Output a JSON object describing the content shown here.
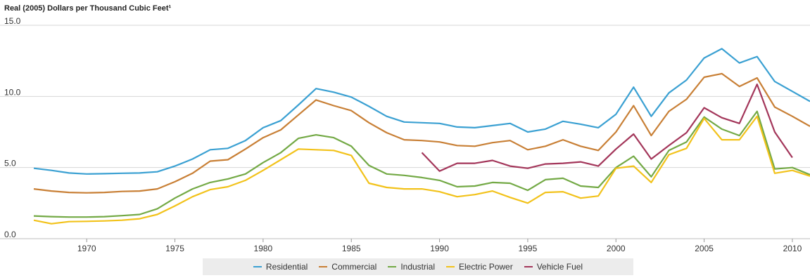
{
  "chart_data": {
    "type": "line",
    "title": "Real (2005) Dollars per Thousand Cubic Feet¹",
    "xlabel": "",
    "ylabel": "",
    "xlim": [
      1967,
      2011
    ],
    "ylim": [
      0,
      15
    ],
    "x_ticks": [
      1970,
      1975,
      1980,
      1985,
      1990,
      1995,
      2000,
      2005,
      2010
    ],
    "y_ticks": [
      "0.0",
      "5.0",
      "10.0",
      "15.0"
    ],
    "y_tick_values": [
      0,
      5,
      10,
      15
    ],
    "grid": "horizontal",
    "legend_position": "bottom",
    "series": [
      {
        "name": "Residential",
        "color": "#3aa0d2",
        "x": [
          1967,
          1968,
          1969,
          1970,
          1971,
          1972,
          1973,
          1974,
          1975,
          1976,
          1977,
          1978,
          1979,
          1980,
          1981,
          1982,
          1983,
          1984,
          1985,
          1986,
          1987,
          1988,
          1989,
          1990,
          1991,
          1992,
          1993,
          1994,
          1995,
          1996,
          1997,
          1998,
          1999,
          2000,
          2001,
          2002,
          2003,
          2004,
          2005,
          2006,
          2007,
          2008,
          2009,
          2010,
          2011
        ],
        "values": [
          4.95,
          4.8,
          4.62,
          4.55,
          4.57,
          4.6,
          4.62,
          4.7,
          5.1,
          5.6,
          6.25,
          6.35,
          6.9,
          7.8,
          8.3,
          9.4,
          10.55,
          10.3,
          9.95,
          9.3,
          8.6,
          8.2,
          8.15,
          8.1,
          7.85,
          7.8,
          7.95,
          8.1,
          7.5,
          7.7,
          8.25,
          8.05,
          7.8,
          8.75,
          10.65,
          8.6,
          10.25,
          11.15,
          12.7,
          13.35,
          12.35,
          12.8,
          11.05,
          10.35,
          9.65
        ]
      },
      {
        "name": "Commercial",
        "color": "#c87f35",
        "x": [
          1967,
          1968,
          1969,
          1970,
          1971,
          1972,
          1973,
          1974,
          1975,
          1976,
          1977,
          1978,
          1979,
          1980,
          1981,
          1982,
          1983,
          1984,
          1985,
          1986,
          1987,
          1988,
          1989,
          1990,
          1991,
          1992,
          1993,
          1994,
          1995,
          1996,
          1997,
          1998,
          1999,
          2000,
          2001,
          2002,
          2003,
          2004,
          2005,
          2006,
          2007,
          2008,
          2009,
          2010,
          2011
        ],
        "values": [
          3.5,
          3.35,
          3.25,
          3.22,
          3.25,
          3.32,
          3.35,
          3.5,
          4.0,
          4.6,
          5.45,
          5.55,
          6.3,
          7.1,
          7.65,
          8.7,
          9.75,
          9.35,
          9.0,
          8.15,
          7.45,
          6.95,
          6.9,
          6.8,
          6.55,
          6.5,
          6.75,
          6.9,
          6.25,
          6.5,
          6.95,
          6.5,
          6.2,
          7.5,
          9.35,
          7.25,
          8.95,
          9.8,
          11.35,
          11.6,
          10.7,
          11.3,
          9.25,
          8.6,
          7.9
        ]
      },
      {
        "name": "Industrial",
        "color": "#73a945",
        "x": [
          1967,
          1968,
          1969,
          1970,
          1971,
          1972,
          1973,
          1974,
          1975,
          1976,
          1977,
          1978,
          1979,
          1980,
          1981,
          1982,
          1983,
          1984,
          1985,
          1986,
          1987,
          1988,
          1989,
          1990,
          1991,
          1992,
          1993,
          1994,
          1995,
          1996,
          1997,
          1998,
          1999,
          2000,
          2001,
          2002,
          2003,
          2004,
          2005,
          2006,
          2007,
          2008,
          2009,
          2010,
          2011
        ],
        "values": [
          1.6,
          1.55,
          1.52,
          1.52,
          1.55,
          1.62,
          1.7,
          2.1,
          2.85,
          3.5,
          3.95,
          4.2,
          4.55,
          5.35,
          6.05,
          7.05,
          7.3,
          7.1,
          6.5,
          5.15,
          4.55,
          4.45,
          4.3,
          4.1,
          3.65,
          3.7,
          3.95,
          3.9,
          3.4,
          4.15,
          4.25,
          3.7,
          3.6,
          5.0,
          5.8,
          4.35,
          6.2,
          6.8,
          8.55,
          7.7,
          7.25,
          8.95,
          4.9,
          5.0,
          4.5
        ]
      },
      {
        "name": "Electric Power",
        "color": "#f2c21a",
        "x": [
          1967,
          1968,
          1969,
          1970,
          1971,
          1972,
          1973,
          1974,
          1975,
          1976,
          1977,
          1978,
          1979,
          1980,
          1981,
          1982,
          1983,
          1984,
          1985,
          1986,
          1987,
          1988,
          1989,
          1990,
          1991,
          1992,
          1993,
          1994,
          1995,
          1996,
          1997,
          1998,
          1999,
          2000,
          2001,
          2002,
          2003,
          2004,
          2005,
          2006,
          2007,
          2008,
          2009,
          2010,
          2011
        ],
        "values": [
          1.3,
          1.05,
          1.2,
          1.22,
          1.25,
          1.3,
          1.4,
          1.7,
          2.3,
          2.95,
          3.45,
          3.65,
          4.1,
          4.8,
          5.55,
          6.3,
          6.25,
          6.2,
          5.85,
          3.9,
          3.6,
          3.5,
          3.5,
          3.3,
          2.95,
          3.1,
          3.35,
          2.9,
          2.5,
          3.25,
          3.3,
          2.85,
          3.0,
          4.95,
          5.1,
          3.95,
          5.9,
          6.35,
          8.45,
          6.95,
          6.95,
          8.6,
          4.6,
          4.8,
          4.4
        ]
      },
      {
        "name": "Vehicle Fuel",
        "color": "#a3365a",
        "x": [
          1989,
          1990,
          1991,
          1992,
          1993,
          1994,
          1995,
          1996,
          1997,
          1998,
          1999,
          2000,
          2001,
          2002,
          2003,
          2004,
          2005,
          2006,
          2007,
          2008,
          2009,
          2010
        ],
        "values": [
          6.05,
          4.75,
          5.3,
          5.3,
          5.5,
          5.1,
          4.95,
          5.25,
          5.3,
          5.4,
          5.1,
          6.3,
          7.35,
          5.6,
          6.55,
          7.45,
          9.2,
          8.5,
          8.1,
          10.85,
          7.5,
          5.7
        ]
      }
    ]
  }
}
